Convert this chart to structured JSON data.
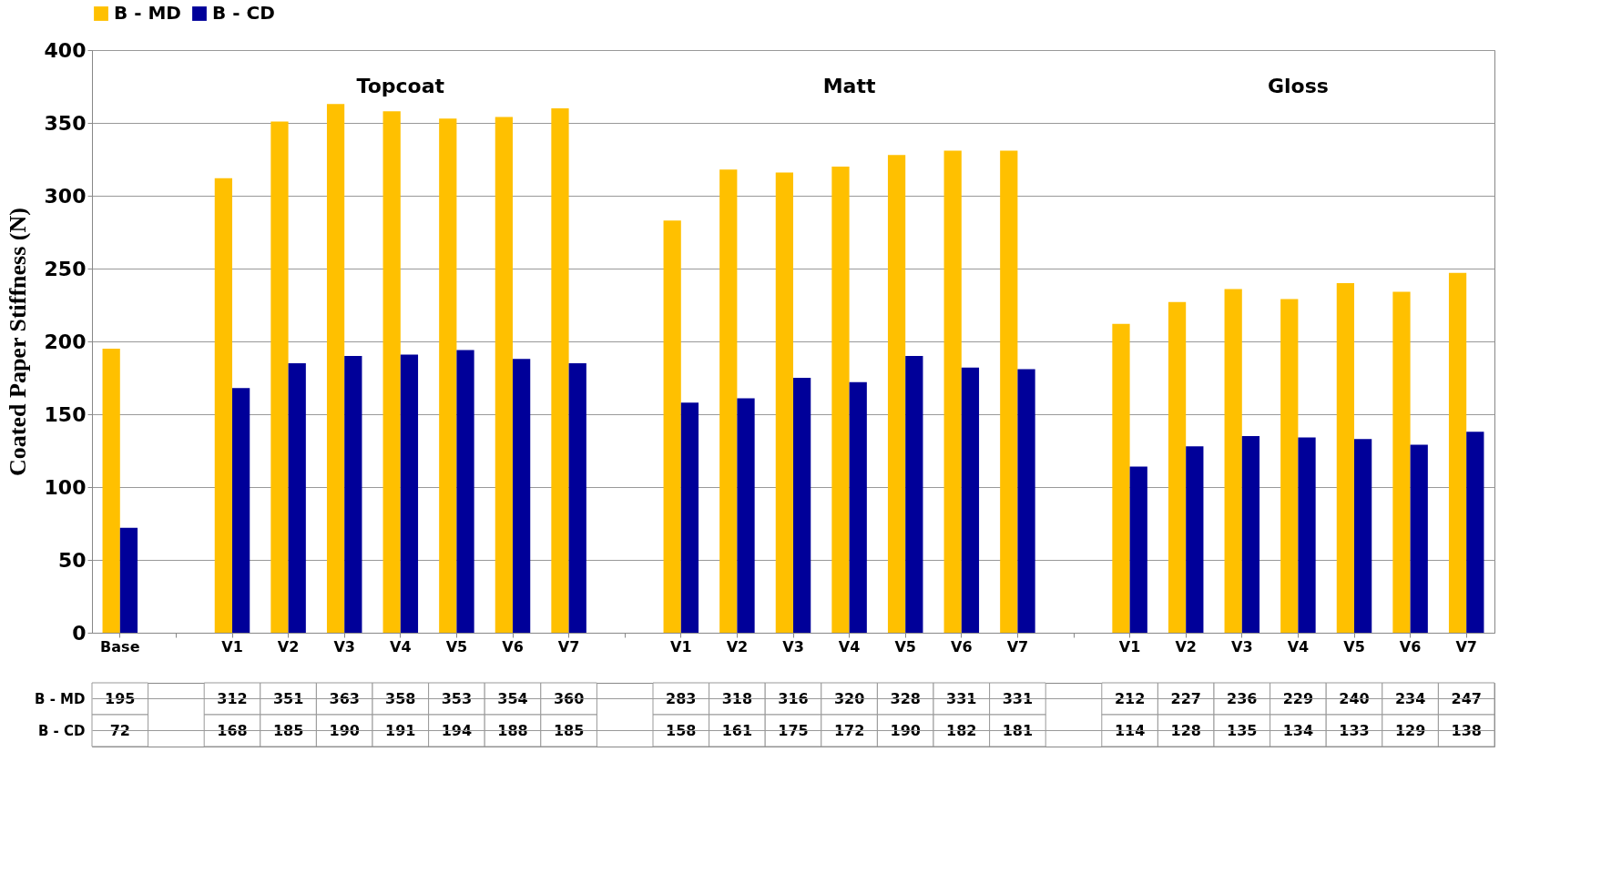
{
  "chart_data": {
    "type": "bar",
    "ylabel": "Coated Paper Stiffness (N)",
    "categories": [
      "Base",
      null,
      "V1",
      "V2",
      "V3",
      "V4",
      "V5",
      "V6",
      "V7",
      null,
      "V1",
      "V2",
      "V3",
      "V4",
      "V5",
      "V6",
      "V7",
      null,
      "V1",
      "V2",
      "V3",
      "V4",
      "V5",
      "V6",
      "V7"
    ],
    "series": [
      {
        "name": "B - MD",
        "color": "#ffc000",
        "values": [
          195,
          null,
          312,
          351,
          363,
          358,
          353,
          354,
          360,
          null,
          283,
          318,
          316,
          320,
          328,
          331,
          331,
          null,
          212,
          227,
          236,
          229,
          240,
          234,
          247
        ]
      },
      {
        "name": "B - CD",
        "color": "#000099",
        "values": [
          72,
          null,
          168,
          185,
          190,
          191,
          194,
          188,
          185,
          null,
          158,
          161,
          175,
          172,
          190,
          182,
          181,
          null,
          114,
          128,
          135,
          134,
          133,
          129,
          138
        ]
      }
    ],
    "ylim": [
      0,
      400
    ],
    "yticks": [
      0,
      50,
      100,
      150,
      200,
      250,
      300,
      350,
      400
    ],
    "annotations": [
      "Topcoat",
      "Matt",
      "Gloss"
    ],
    "grid": "y",
    "legend": "top",
    "data_labels": true
  }
}
